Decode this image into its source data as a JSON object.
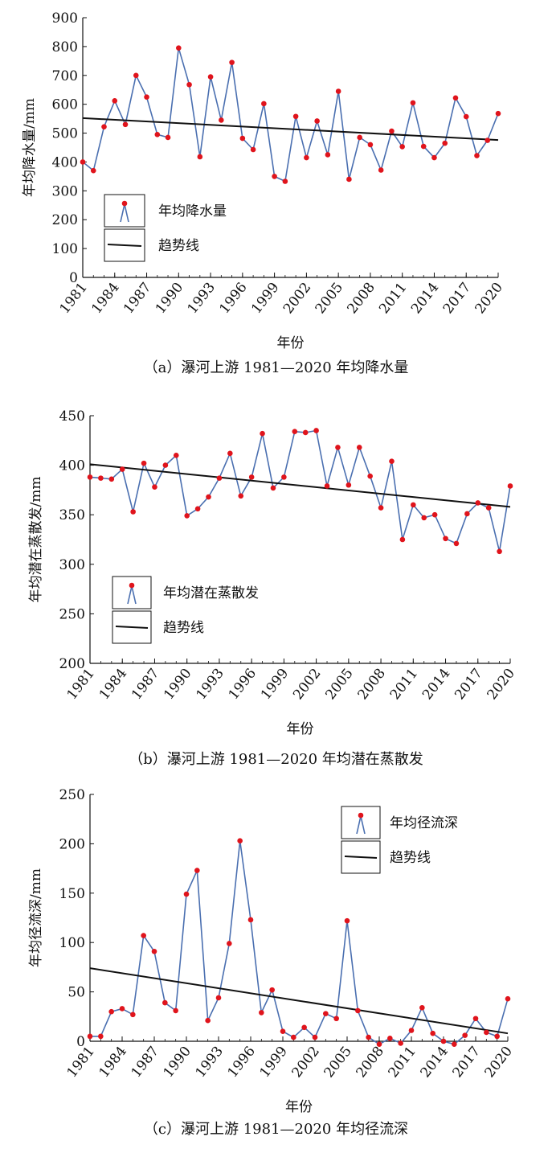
{
  "colors": {
    "series": "#4a6fb0",
    "marker": "#e0141c",
    "trend": "#111111"
  },
  "chart_data": [
    {
      "type": "line",
      "caption": "（a）瀑河上游 1981—2020 年均降水量",
      "xlabel": "年份",
      "ylabel": "年均降水量/mm",
      "xlim": [
        1981,
        2020
      ],
      "ylim": [
        0,
        900
      ],
      "yticks": [
        0,
        100,
        200,
        300,
        400,
        500,
        600,
        700,
        800,
        900
      ],
      "xticks": [
        1981,
        1984,
        1987,
        1990,
        1993,
        1996,
        1999,
        2002,
        2005,
        2008,
        2011,
        2014,
        2017,
        2020
      ],
      "grid": false,
      "legend_position": "bottom-left",
      "series": [
        {
          "name": "年均降水量",
          "x": [
            1981,
            1982,
            1983,
            1984,
            1985,
            1986,
            1987,
            1988,
            1989,
            1990,
            1991,
            1992,
            1993,
            1994,
            1995,
            1996,
            1997,
            1998,
            1999,
            2000,
            2001,
            2002,
            2003,
            2004,
            2005,
            2006,
            2007,
            2008,
            2009,
            2010,
            2011,
            2012,
            2013,
            2014,
            2015,
            2016,
            2017,
            2018,
            2019,
            2020
          ],
          "values": [
            400,
            370,
            522,
            612,
            530,
            700,
            625,
            495,
            485,
            795,
            668,
            418,
            695,
            545,
            745,
            482,
            443,
            602,
            350,
            333,
            558,
            415,
            542,
            425,
            645,
            340,
            485,
            460,
            372,
            507,
            453,
            605,
            454,
            415,
            465,
            622,
            557,
            422,
            475,
            568
          ]
        },
        {
          "name": "趋势线",
          "x": [
            1981,
            2020
          ],
          "values": [
            552,
            476
          ]
        }
      ]
    },
    {
      "type": "line",
      "caption": "（b）瀑河上游 1981—2020 年均潜在蒸散发",
      "xlabel": "年份",
      "ylabel": "年均潜在蒸散发/mm",
      "xlim": [
        1981,
        2020
      ],
      "ylim": [
        200,
        450
      ],
      "yticks": [
        200,
        250,
        300,
        350,
        400,
        450
      ],
      "xticks": [
        1981,
        1984,
        1987,
        1990,
        1993,
        1996,
        1999,
        2002,
        2005,
        2008,
        2011,
        2014,
        2017,
        2020
      ],
      "grid": false,
      "legend_position": "bottom-left",
      "series": [
        {
          "name": "年均潜在蒸散发",
          "x": [
            1981,
            1982,
            1983,
            1984,
            1985,
            1986,
            1987,
            1988,
            1989,
            1990,
            1991,
            1992,
            1993,
            1994,
            1995,
            1996,
            1997,
            1998,
            1999,
            2000,
            2001,
            2002,
            2003,
            2004,
            2005,
            2006,
            2007,
            2008,
            2009,
            2010,
            2011,
            2012,
            2013,
            2014,
            2015,
            2016,
            2017,
            2018,
            2019,
            2020
          ],
          "values": [
            388,
            387,
            386,
            396,
            353,
            402,
            378,
            400,
            410,
            349,
            356,
            368,
            387,
            412,
            369,
            388,
            432,
            377,
            388,
            434,
            433,
            435,
            379,
            418,
            380,
            418,
            389,
            357,
            404,
            325,
            360,
            347,
            350,
            326,
            321,
            351,
            362,
            357,
            313,
            379
          ]
        },
        {
          "name": "趋势线",
          "x": [
            1981,
            2020
          ],
          "values": [
            401,
            358
          ]
        }
      ]
    },
    {
      "type": "line",
      "caption": "（c）瀑河上游 1981—2020 年均径流深",
      "xlabel": "年份",
      "ylabel": "年均径流深/mm",
      "xlim": [
        1981,
        2020
      ],
      "ylim": [
        0,
        250
      ],
      "yticks": [
        0,
        50,
        100,
        150,
        200,
        250
      ],
      "xticks": [
        1981,
        1984,
        1987,
        1990,
        1993,
        1996,
        1999,
        2002,
        2005,
        2008,
        2011,
        2014,
        2017,
        2020
      ],
      "grid": false,
      "legend_position": "top-right",
      "series": [
        {
          "name": "年均径流深",
          "x": [
            1981,
            1982,
            1983,
            1984,
            1985,
            1986,
            1987,
            1988,
            1989,
            1990,
            1991,
            1992,
            1993,
            1994,
            1995,
            1996,
            1997,
            1998,
            1999,
            2000,
            2001,
            2002,
            2003,
            2004,
            2005,
            2006,
            2007,
            2008,
            2009,
            2010,
            2011,
            2012,
            2013,
            2014,
            2015,
            2016,
            2017,
            2018,
            2019,
            2020
          ],
          "values": [
            5,
            5,
            30,
            33,
            27,
            107,
            91,
            39,
            31,
            149,
            173,
            21,
            44,
            99,
            203,
            123,
            29,
            52,
            10,
            4,
            14,
            4,
            28,
            23,
            122,
            31,
            4,
            -3,
            3,
            -2,
            11,
            34,
            8,
            0,
            -3,
            6,
            23,
            9,
            5,
            43
          ]
        },
        {
          "name": "趋势线",
          "x": [
            1981,
            2020
          ],
          "values": [
            74,
            8
          ]
        }
      ]
    }
  ]
}
